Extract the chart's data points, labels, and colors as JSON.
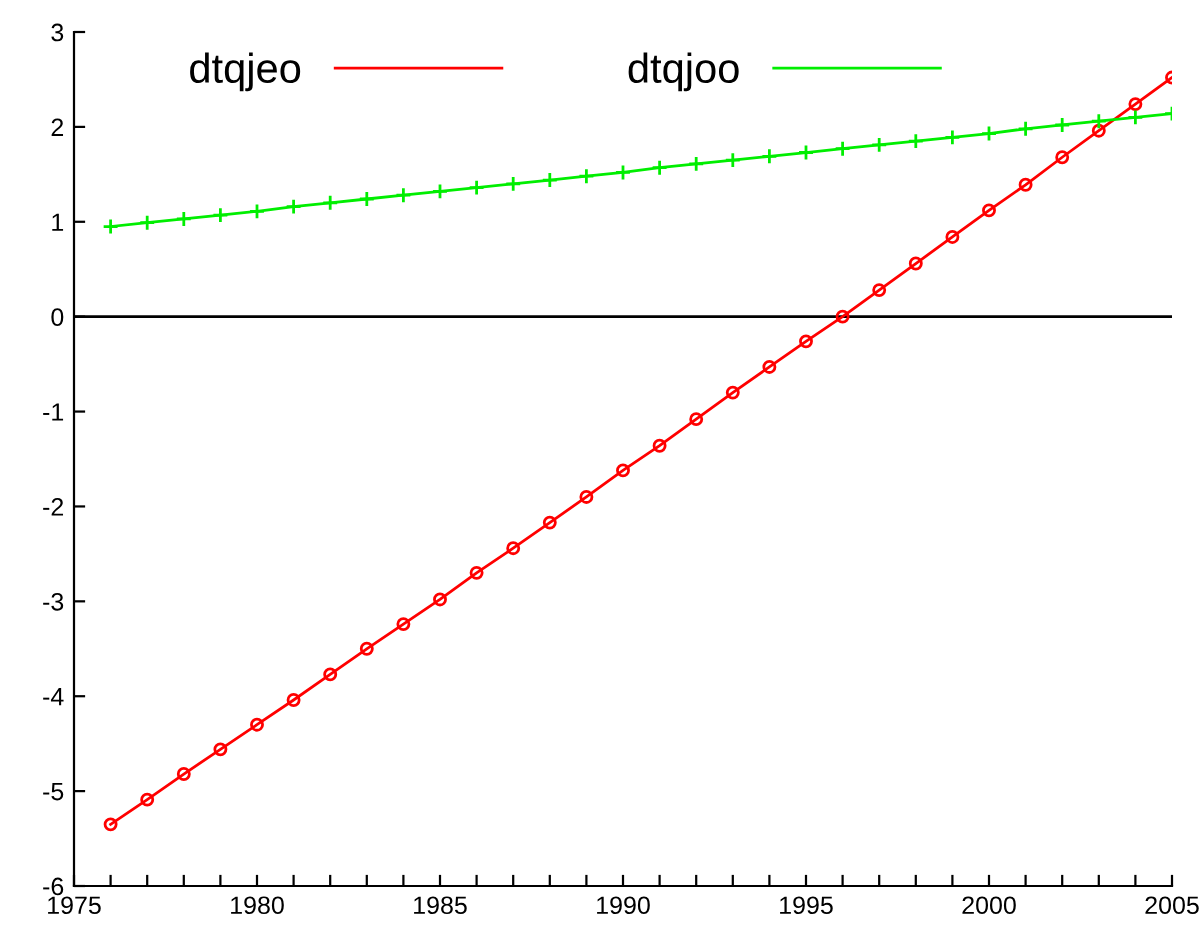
{
  "chart_data": {
    "type": "line",
    "x": [
      1976,
      1977,
      1978,
      1979,
      1980,
      1981,
      1982,
      1983,
      1984,
      1985,
      1986,
      1987,
      1988,
      1989,
      1990,
      1991,
      1992,
      1993,
      1994,
      1995,
      1996,
      1997,
      1998,
      1999,
      2000,
      2001,
      2002,
      2003,
      2004,
      2005
    ],
    "series": [
      {
        "name": "dtqjeo",
        "color": "#ff0000",
        "marker": "circle",
        "values": [
          -5.35,
          -5.09,
          -4.82,
          -4.56,
          -4.3,
          -4.04,
          -3.77,
          -3.5,
          -3.24,
          -2.98,
          -2.7,
          -2.44,
          -2.17,
          -1.9,
          -1.62,
          -1.36,
          -1.08,
          -0.8,
          -0.53,
          -0.26,
          0,
          0.28,
          0.56,
          0.84,
          1.12,
          1.39,
          1.68,
          1.96,
          2.24,
          2.52
        ]
      },
      {
        "name": "dtqjoo",
        "color": "#00ee00",
        "marker": "cross",
        "values": [
          0.95,
          0.99,
          1.03,
          1.07,
          1.11,
          1.16,
          1.2,
          1.24,
          1.28,
          1.32,
          1.36,
          1.4,
          1.44,
          1.48,
          1.52,
          1.57,
          1.61,
          1.65,
          1.69,
          1.73,
          1.77,
          1.81,
          1.85,
          1.89,
          1.93,
          1.98,
          2.02,
          2.06,
          2.1,
          2.14
        ]
      }
    ],
    "xlim": [
      1975,
      2005
    ],
    "xticks": [
      1975,
      {
        "value": 1976,
        "label": null
      },
      {
        "value": 1977,
        "label": null
      },
      {
        "value": 1978,
        "label": null
      },
      {
        "value": 1979,
        "label": null
      },
      1980,
      {
        "value": 1981,
        "label": null
      },
      {
        "value": 1982,
        "label": null
      },
      {
        "value": 1983,
        "label": null
      },
      {
        "value": 1984,
        "label": null
      },
      1985,
      {
        "value": 1986,
        "label": null
      },
      {
        "value": 1987,
        "label": null
      },
      {
        "value": 1988,
        "label": null
      },
      {
        "value": 1989,
        "label": null
      },
      1990,
      {
        "value": 1991,
        "label": null
      },
      {
        "value": 1992,
        "label": null
      },
      {
        "value": 1993,
        "label": null
      },
      {
        "value": 1994,
        "label": null
      },
      1995,
      {
        "value": 1996,
        "label": null
      },
      {
        "value": 1997,
        "label": null
      },
      {
        "value": 1998,
        "label": null
      },
      {
        "value": 1999,
        "label": null
      },
      2000,
      {
        "value": 2001,
        "label": null
      },
      {
        "value": 2002,
        "label": null
      },
      {
        "value": 2003,
        "label": null
      },
      {
        "value": 2004,
        "label": null
      },
      2005
    ],
    "ylim": [
      -6,
      3
    ],
    "yticks": [
      -6,
      -5,
      -4,
      -3,
      -2,
      -1,
      0,
      1,
      2,
      3
    ],
    "ref_lines": [
      {
        "axis": "y",
        "value": 0,
        "color": "#000000"
      }
    ],
    "legend": "top left",
    "grid": false
  }
}
